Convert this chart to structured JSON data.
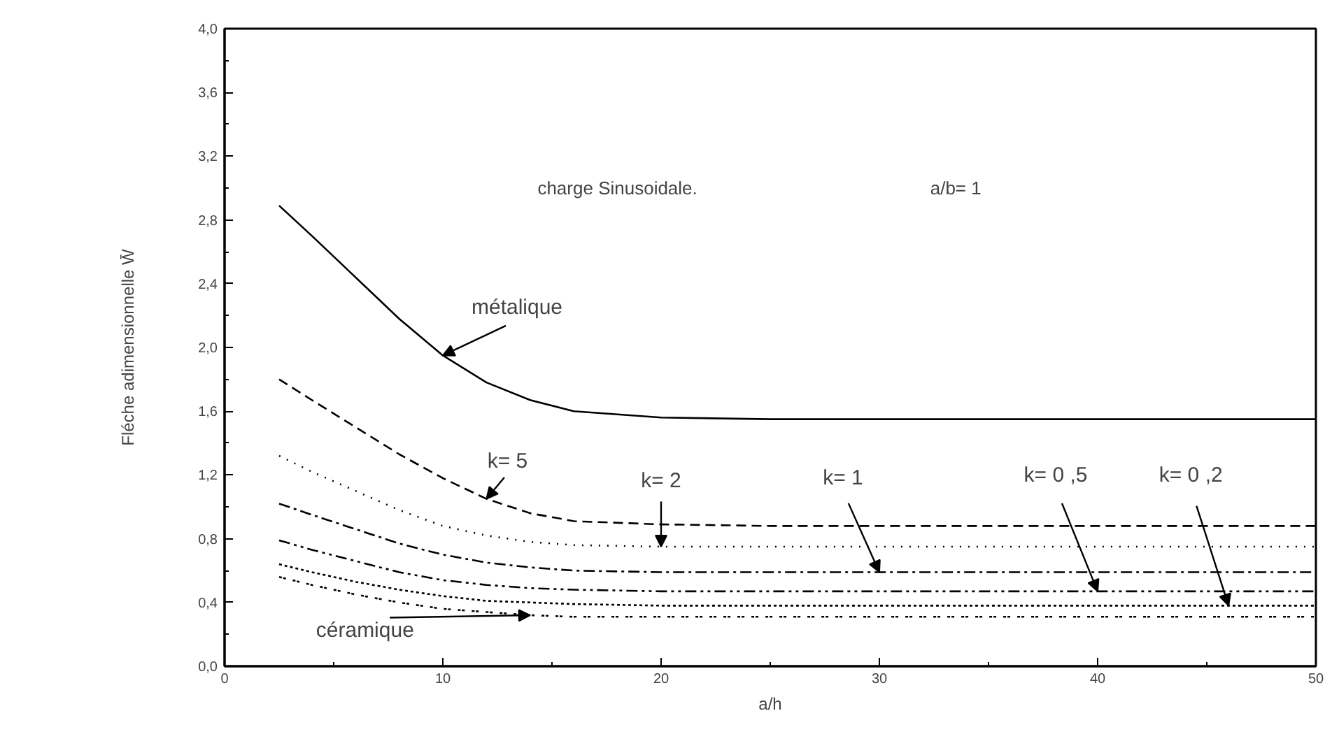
{
  "chart_data": {
    "type": "line",
    "xlabel": "a/h",
    "ylabel": "Fléche adimensionnelle W̄",
    "x": [
      2.5,
      4,
      6,
      8,
      10,
      12,
      14,
      16,
      20,
      25,
      30,
      40,
      50
    ],
    "series": [
      {
        "color": "#000000",
        "line_style": "solid",
        "values": [
          2.89,
          2.7,
          2.44,
          2.18,
          1.95,
          1.78,
          1.67,
          1.6,
          1.56,
          1.55,
          1.55,
          1.55,
          1.55
        ]
      },
      {
        "color": "#000000",
        "line_style": "dashed",
        "values": [
          1.8,
          1.67,
          1.5,
          1.33,
          1.18,
          1.05,
          0.96,
          0.91,
          0.89,
          0.88,
          0.88,
          0.88,
          0.88
        ]
      },
      {
        "color": "#000000",
        "line_style": "dotted",
        "values": [
          1.32,
          1.22,
          1.1,
          0.98,
          0.88,
          0.82,
          0.78,
          0.76,
          0.75,
          0.75,
          0.75,
          0.75,
          0.75
        ]
      },
      {
        "color": "#000000",
        "line_style": "dashdot",
        "values": [
          1.02,
          0.95,
          0.86,
          0.77,
          0.7,
          0.65,
          0.62,
          0.6,
          0.59,
          0.59,
          0.59,
          0.59,
          0.59
        ]
      },
      {
        "color": "#000000",
        "line_style": "dashdotdot",
        "values": [
          0.79,
          0.73,
          0.66,
          0.59,
          0.54,
          0.51,
          0.49,
          0.48,
          0.47,
          0.47,
          0.47,
          0.47,
          0.47
        ]
      },
      {
        "color": "#000000",
        "line_style": "densedotted",
        "values": [
          0.64,
          0.59,
          0.53,
          0.48,
          0.44,
          0.41,
          0.4,
          0.39,
          0.38,
          0.38,
          0.38,
          0.38,
          0.38
        ]
      },
      {
        "color": "#000000",
        "line_style": "sparsedotted",
        "values": [
          0.56,
          0.51,
          0.45,
          0.4,
          0.36,
          0.34,
          0.32,
          0.31,
          0.31,
          0.31,
          0.31,
          0.31,
          0.31
        ]
      }
    ],
    "xlim": [
      0,
      50
    ],
    "xticks": [
      0,
      {
        "value": 5,
        "label": null
      },
      10,
      {
        "value": 15,
        "label": null
      },
      20,
      {
        "value": 25,
        "label": null
      },
      30,
      {
        "value": 35,
        "label": null
      },
      40,
      {
        "value": 45,
        "label": null
      },
      50
    ],
    "ylim": [
      0,
      4
    ],
    "yticks": [
      {
        "value": 0,
        "label": "0,0"
      },
      {
        "value": 0.2,
        "label": null
      },
      {
        "value": 0.4,
        "label": "0,4"
      },
      {
        "value": 0.6,
        "label": null
      },
      {
        "value": 0.8,
        "label": "0,8"
      },
      {
        "value": 1.0,
        "label": null
      },
      {
        "value": 1.2,
        "label": "1,2"
      },
      {
        "value": 1.4,
        "label": null
      },
      {
        "value": 1.6,
        "label": "1,6"
      },
      {
        "value": 1.8,
        "label": null
      },
      {
        "value": 2.0,
        "label": "2,0"
      },
      {
        "value": 2.2,
        "label": null
      },
      {
        "value": 2.4,
        "label": "2,4"
      },
      {
        "value": 2.6,
        "label": null
      },
      {
        "value": 2.8,
        "label": "2,8"
      },
      {
        "value": 3.0,
        "label": null
      },
      {
        "value": 3.2,
        "label": "3,2"
      },
      {
        "value": 3.4,
        "label": null
      },
      {
        "value": 3.6,
        "label": "3,6"
      },
      {
        "value": 3.8,
        "label": null
      },
      {
        "value": 4.0,
        "label": "4,0"
      }
    ],
    "grid": false,
    "marker": "none",
    "annotations": [
      "charge Sinusoidale.",
      "a/b= 1",
      {
        "text": "métalique",
        "x": 10,
        "y": 1.95
      },
      {
        "text": "k= 5",
        "x": 12,
        "y": 1.05
      },
      {
        "text": "k= 2",
        "x": 20,
        "y": 0.75
      },
      {
        "text": "k= 1",
        "x": 30,
        "y": 0.59
      },
      {
        "text": "k= 0 ,5",
        "x": 40,
        "y": 0.47
      },
      {
        "text": "k= 0 ,2",
        "x": 46,
        "y": 0.38
      },
      {
        "text": "céramique",
        "x": 14,
        "y": 0.32
      }
    ]
  }
}
